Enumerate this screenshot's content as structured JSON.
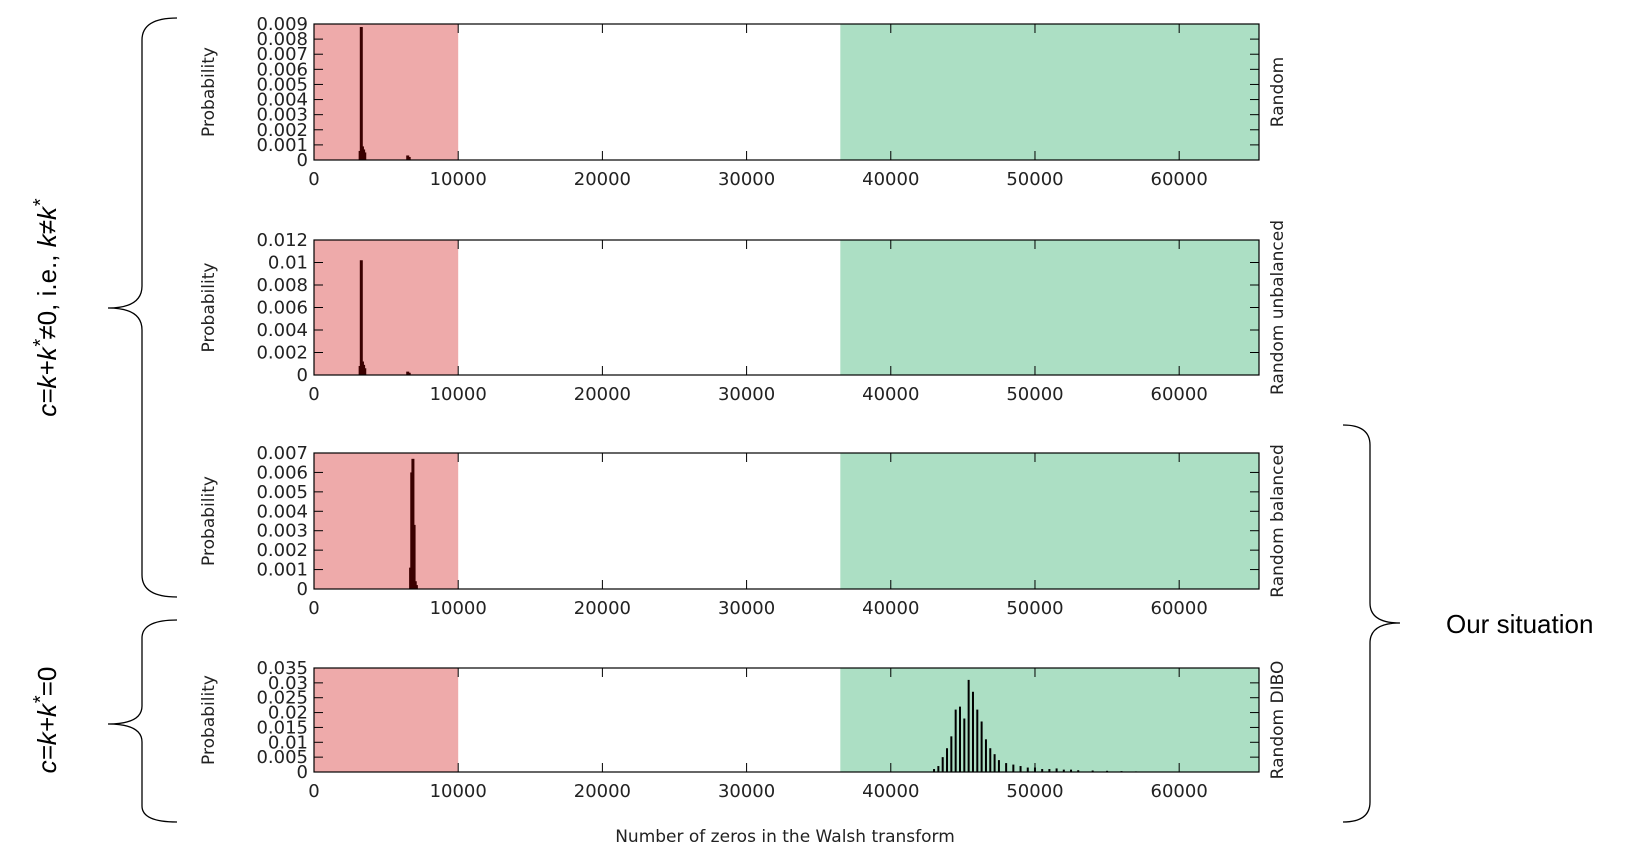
{
  "chart_data": [
    {
      "type": "bar",
      "ylabel": "Probability",
      "right_label": "Random",
      "xlim": [
        0,
        65536
      ],
      "ylim": [
        0,
        0.009
      ],
      "yticks": [
        "0",
        "0.001",
        "0.002",
        "0.003",
        "0.004",
        "0.005",
        "0.006",
        "0.007",
        "0.008",
        "0.009"
      ],
      "xticks": [
        "0",
        "10000",
        "20000",
        "30000",
        "40000",
        "50000",
        "60000"
      ],
      "x": [
        3200,
        3280,
        3360,
        3440,
        3520,
        6500,
        6600
      ],
      "values": [
        0.0006,
        0.0088,
        0.0009,
        0.0007,
        0.0005,
        0.0003,
        0.0002
      ]
    },
    {
      "type": "bar",
      "ylabel": "Probability",
      "right_label": "Random unbalanced",
      "xlim": [
        0,
        65536
      ],
      "ylim": [
        0,
        0.012
      ],
      "yticks": [
        "0",
        "0.002",
        "0.004",
        "0.006",
        "0.008",
        "0.01",
        "0.012"
      ],
      "xticks": [
        "0",
        "10000",
        "20000",
        "30000",
        "40000",
        "50000",
        "60000"
      ],
      "x": [
        3200,
        3280,
        3360,
        3440,
        3520,
        6500,
        6600
      ],
      "values": [
        0.0008,
        0.0102,
        0.0012,
        0.0009,
        0.0006,
        0.0003,
        0.0002
      ]
    },
    {
      "type": "bar",
      "ylabel": "Probability",
      "right_label": "Random balanced",
      "xlim": [
        0,
        65536
      ],
      "ylim": [
        0,
        0.007
      ],
      "yticks": [
        "0",
        "0.001",
        "0.002",
        "0.003",
        "0.004",
        "0.005",
        "0.006",
        "0.007"
      ],
      "xticks": [
        "0",
        "10000",
        "20000",
        "30000",
        "40000",
        "50000",
        "60000"
      ],
      "x": [
        6700,
        6780,
        6860,
        6940,
        7020,
        7100
      ],
      "values": [
        0.0011,
        0.006,
        0.0067,
        0.0033,
        0.0004,
        0.0002
      ]
    },
    {
      "type": "bar",
      "ylabel": "Probability",
      "right_label": "Random DIBO",
      "xlabel": "Number of zeros in the Walsh transform",
      "xlim": [
        0,
        65536
      ],
      "ylim": [
        0,
        0.035
      ],
      "yticks": [
        "0",
        "0.005",
        "0.01",
        "0.015",
        "0.02",
        "0.025",
        "0.03",
        "0.035"
      ],
      "xticks": [
        "0",
        "10000",
        "20000",
        "30000",
        "40000",
        "50000",
        "60000"
      ],
      "x": [
        43000,
        43300,
        43600,
        43900,
        44200,
        44500,
        44800,
        45100,
        45400,
        45700,
        46000,
        46300,
        46600,
        46900,
        47200,
        47500,
        48000,
        48500,
        49000,
        49500,
        50000,
        50500,
        51000,
        51500,
        52000,
        52500,
        53000,
        54000,
        55000,
        56000,
        57000,
        58000
      ],
      "values": [
        0.001,
        0.002,
        0.005,
        0.008,
        0.012,
        0.021,
        0.022,
        0.018,
        0.031,
        0.027,
        0.021,
        0.017,
        0.011,
        0.008,
        0.006,
        0.004,
        0.003,
        0.0025,
        0.002,
        0.0015,
        0.0015,
        0.001,
        0.001,
        0.0012,
        0.0008,
        0.0008,
        0.0006,
        0.0005,
        0.0004,
        0.0003,
        0.0002,
        0.0001
      ]
    }
  ],
  "regions": {
    "red": {
      "color": "#eeaaaa",
      "x_from": 0,
      "x_to": 10000
    },
    "green": {
      "color": "#acdfc4",
      "x_from": 36500,
      "x_to": 65536
    }
  },
  "colors": {
    "bars": "#3a0000",
    "frame": "#000000",
    "dibo_bars": "#000000"
  },
  "annotations": {
    "left_top_prefix": "c=k+k",
    "left_top_star": "*",
    "left_top_middle": "≠0, i.e., ",
    "left_top_k": "k",
    "left_top_neq": "≠",
    "left_top_k2": "k",
    "left_top_star2": "*",
    "left_bottom_prefix": "c=k+k",
    "left_bottom_star": "*",
    "left_bottom_suffix": "=0",
    "right": "Our situation"
  }
}
